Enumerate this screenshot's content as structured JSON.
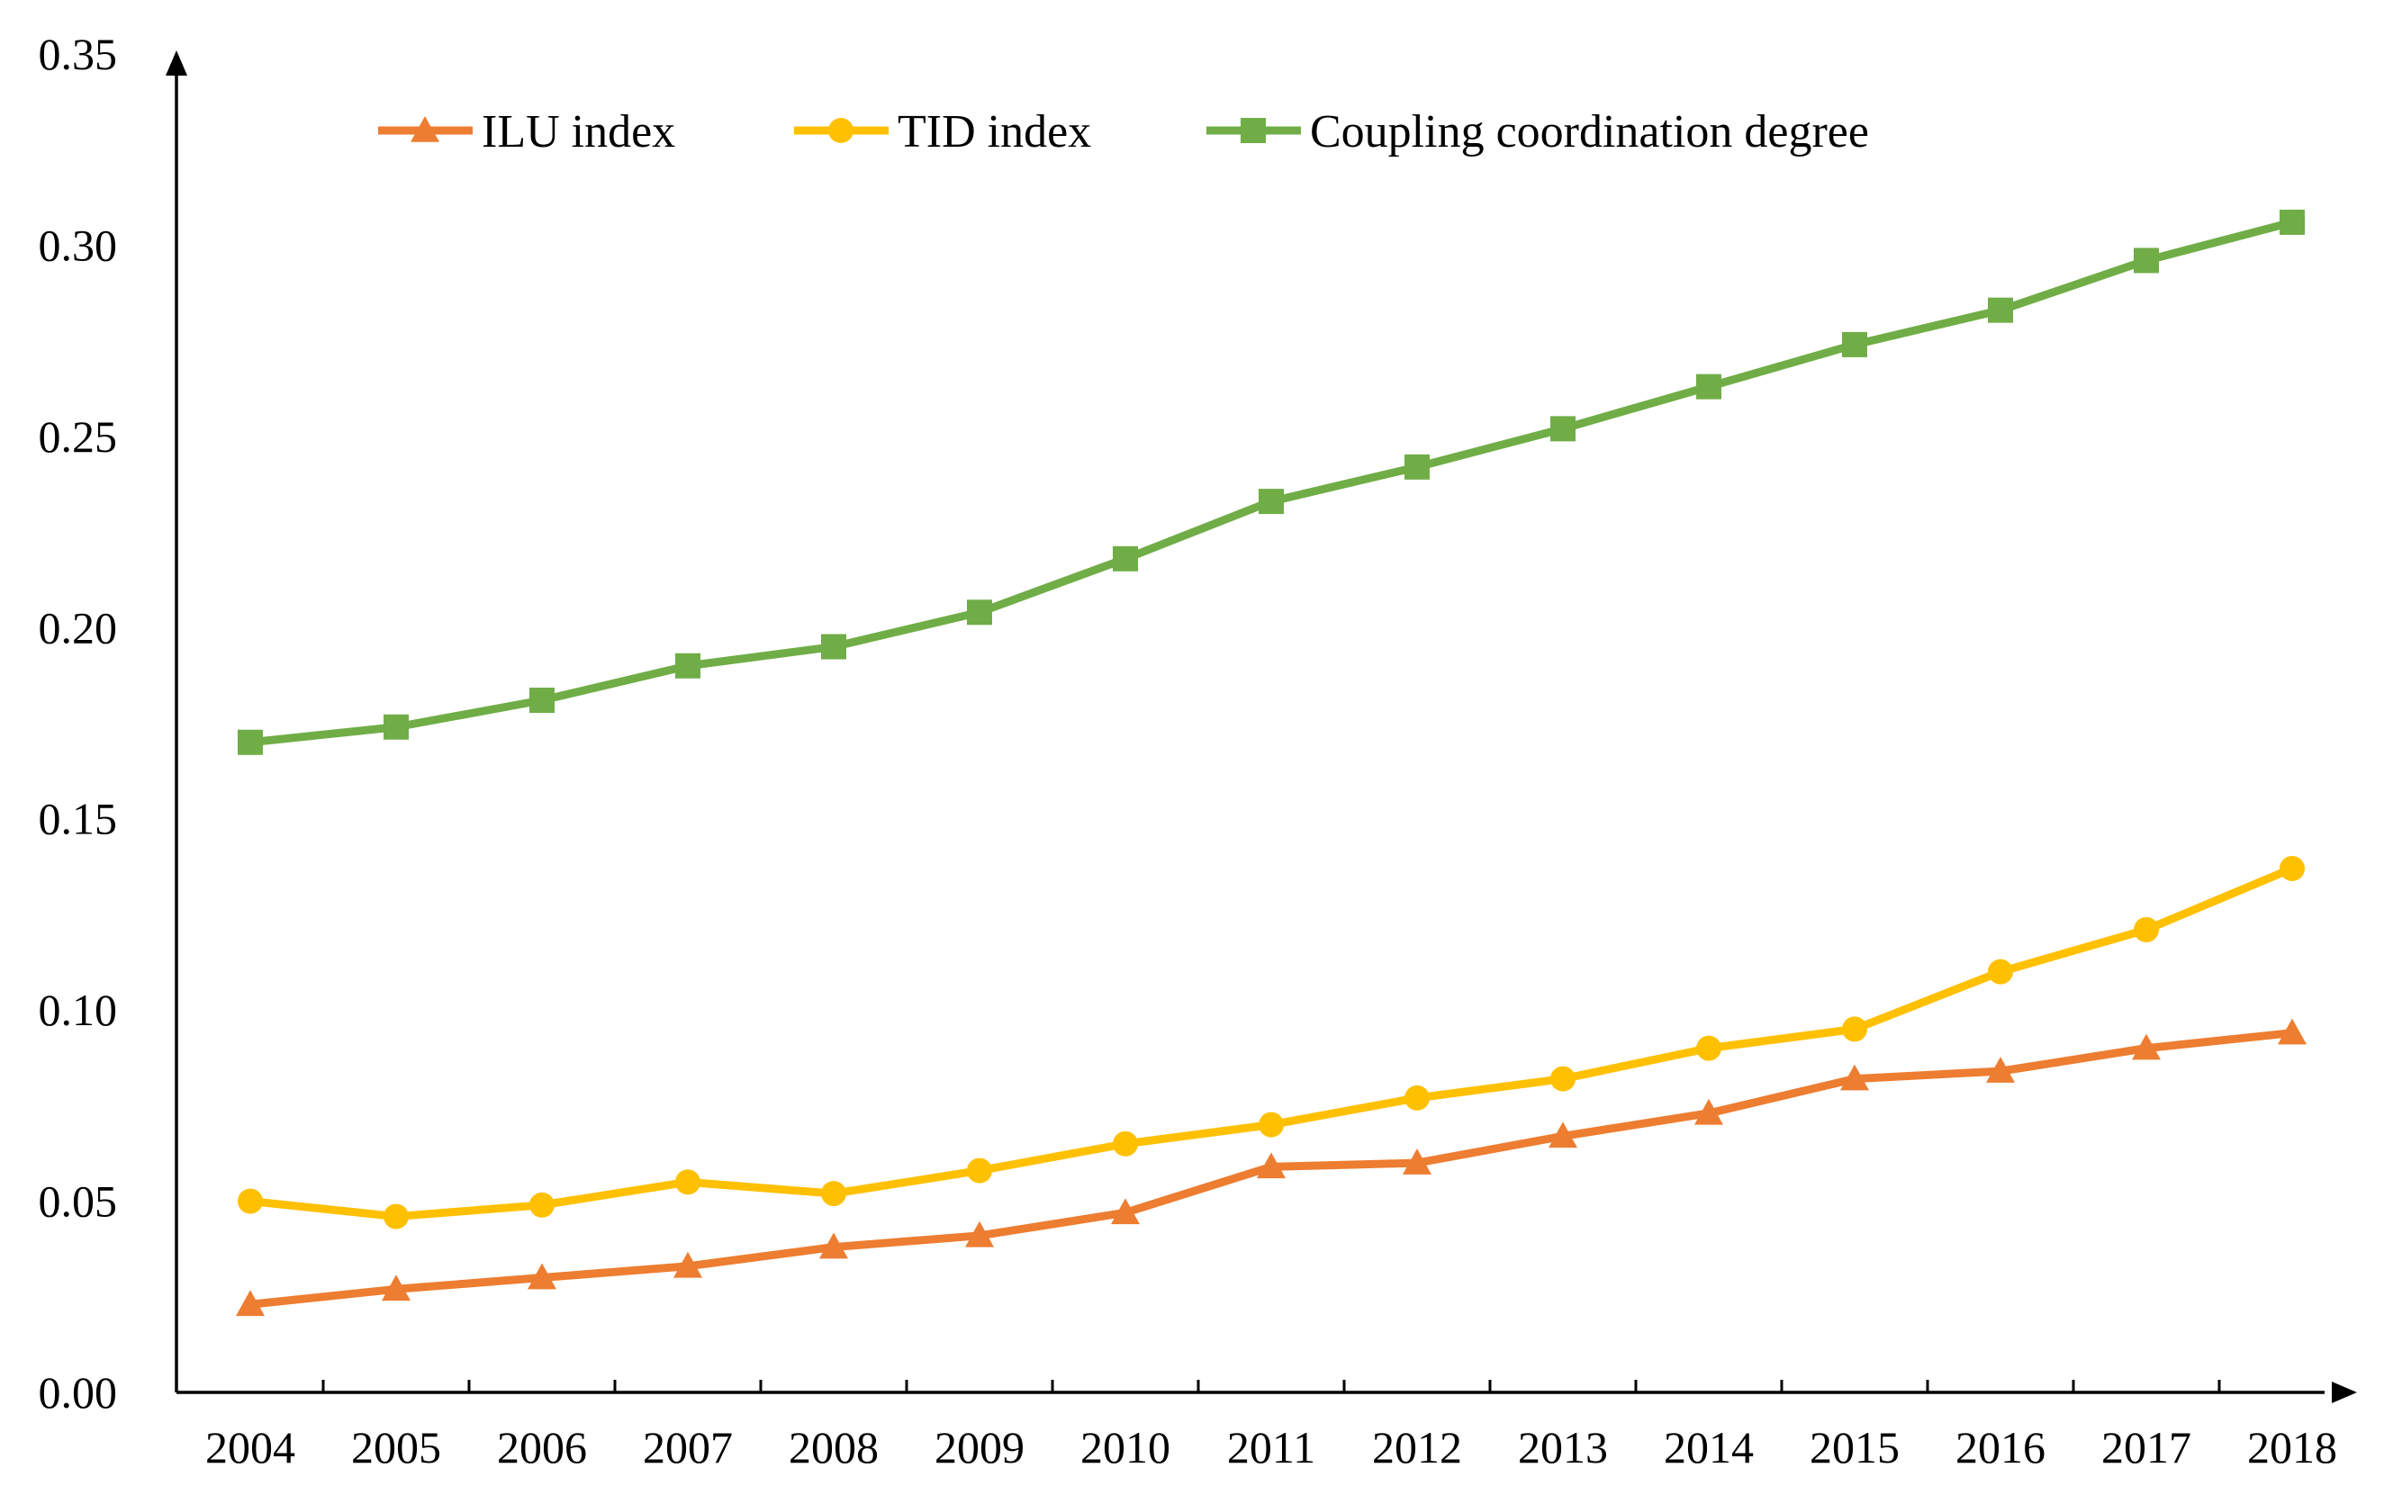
{
  "chart_data": {
    "type": "line",
    "title": "",
    "xlabel": "",
    "ylabel": "",
    "ylim": [
      0,
      0.35
    ],
    "y_ticks": [
      "0.00",
      "0.05",
      "0.10",
      "0.15",
      "0.20",
      "0.25",
      "0.30",
      "0.35"
    ],
    "categories": [
      "2004",
      "2005",
      "2006",
      "2007",
      "2008",
      "2009",
      "2010",
      "2011",
      "2012",
      "2013",
      "2014",
      "2015",
      "2016",
      "2017",
      "2018"
    ],
    "legend_position": "top",
    "grid": false,
    "series": [
      {
        "name": "ILU index",
        "color": "#ED7D31",
        "marker": "triangle",
        "values": [
          0.023,
          0.027,
          0.03,
          0.033,
          0.038,
          0.041,
          0.047,
          0.059,
          0.06,
          0.067,
          0.073,
          0.082,
          0.084,
          0.09,
          0.094
        ]
      },
      {
        "name": "TID index",
        "color": "#FFC000",
        "marker": "circle",
        "values": [
          0.05,
          0.046,
          0.049,
          0.055,
          0.052,
          0.058,
          0.065,
          0.07,
          0.077,
          0.082,
          0.09,
          0.095,
          0.11,
          0.121,
          0.137
        ]
      },
      {
        "name": "Coupling coordination degree",
        "color": "#70AD47",
        "marker": "square",
        "values": [
          0.17,
          0.174,
          0.181,
          0.19,
          0.195,
          0.204,
          0.218,
          0.233,
          0.242,
          0.252,
          0.263,
          0.274,
          0.283,
          0.296,
          0.306
        ]
      }
    ]
  }
}
